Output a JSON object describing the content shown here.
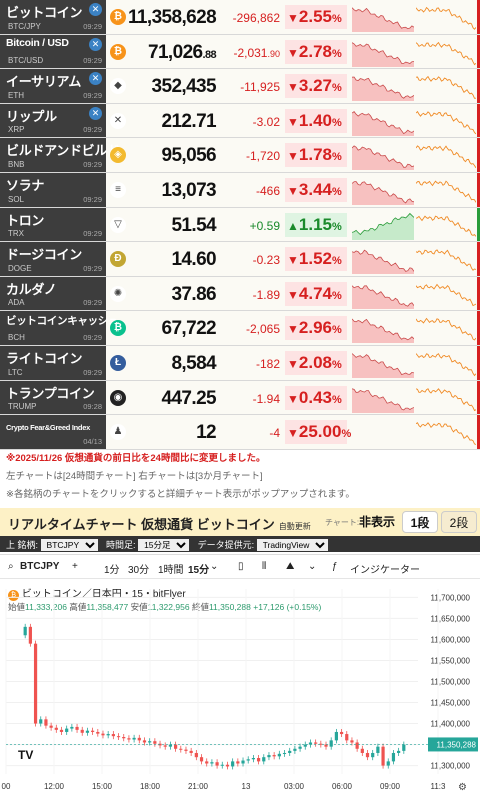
{
  "rows": [
    {
      "name": "ビットコイン",
      "sym": "BTC/JPY",
      "time": "09:29",
      "price": "11,358,628",
      "price_small": "",
      "change": "-296,862",
      "pct": "2.55",
      "dir": "down",
      "x": true,
      "icon": "bitcoin-icon",
      "icon_color": "#f7931a",
      "icon_glyph": "₿"
    },
    {
      "name": "Bitcoin / USD",
      "sym": "BTC/USD",
      "time": "09:29",
      "price": "71,026",
      "price_small": ".88",
      "change": "-2,031",
      "change_small": ".90",
      "pct": "2.78",
      "dir": "down",
      "x": true,
      "icon": "bitcoin-icon",
      "icon_color": "#f7931a",
      "icon_glyph": "₿"
    },
    {
      "name": "イーサリアム",
      "sym": "ETH",
      "time": "09:29",
      "price": "352,435",
      "price_small": "",
      "change": "-11,925",
      "pct": "3.27",
      "dir": "down",
      "x": true,
      "icon": "ethereum-icon",
      "icon_color": "#ffffff",
      "icon_glyph": "◆"
    },
    {
      "name": "リップル",
      "sym": "XRP",
      "time": "09:29",
      "price": "212.71",
      "price_small": "",
      "change": "-3.02",
      "pct": "1.40",
      "dir": "down",
      "x": true,
      "icon": "xrp-icon",
      "icon_color": "#ffffff",
      "icon_glyph": "✕"
    },
    {
      "name": "ビルドアンドビルド",
      "sym": "BNB",
      "time": "09:29",
      "price": "95,056",
      "price_small": "",
      "change": "-1,720",
      "pct": "1.78",
      "dir": "down",
      "x": false,
      "icon": "bnb-icon",
      "icon_color": "#f3ba2f",
      "icon_glyph": "◈"
    },
    {
      "name": "ソラナ",
      "sym": "SOL",
      "time": "09:29",
      "price": "13,073",
      "price_small": "",
      "change": "-466",
      "pct": "3.44",
      "dir": "down",
      "x": false,
      "icon": "solana-icon",
      "icon_color": "#ffffff",
      "icon_glyph": "≡"
    },
    {
      "name": "トロン",
      "sym": "TRX",
      "time": "09:29",
      "price": "51.54",
      "price_small": "",
      "change": "+0.59",
      "pct": "1.15",
      "dir": "up",
      "x": false,
      "icon": "tron-icon",
      "icon_color": "#ffffff",
      "icon_glyph": "▽"
    },
    {
      "name": "ドージコイン",
      "sym": "DOGE",
      "time": "09:29",
      "price": "14.60",
      "price_small": "",
      "change": "-0.23",
      "pct": "1.52",
      "dir": "down",
      "x": false,
      "icon": "dogecoin-icon",
      "icon_color": "#c2a633",
      "icon_glyph": "Ð"
    },
    {
      "name": "カルダノ",
      "sym": "ADA",
      "time": "09:29",
      "price": "37.86",
      "price_small": "",
      "change": "-1.89",
      "pct": "4.74",
      "dir": "down",
      "x": false,
      "icon": "cardano-icon",
      "icon_color": "#ffffff",
      "icon_glyph": "✺"
    },
    {
      "name": "ビットコインキャッシュ",
      "sym": "BCH",
      "time": "09:29",
      "price": "67,722",
      "price_small": "",
      "change": "-2,065",
      "pct": "2.96",
      "dir": "down",
      "x": false,
      "icon": "bitcoin-cash-icon",
      "icon_color": "#0ac18e",
      "icon_glyph": "₿"
    },
    {
      "name": "ライトコイン",
      "sym": "LTC",
      "time": "09:29",
      "price": "8,584",
      "price_small": "",
      "change": "-182",
      "pct": "2.08",
      "dir": "down",
      "x": false,
      "icon": "litecoin-icon",
      "icon_color": "#345d9d",
      "icon_glyph": "Ł"
    },
    {
      "name": "トランプコイン",
      "sym": "TRUMP",
      "time": "09:28",
      "price": "447.25",
      "price_small": "",
      "change": "-1.94",
      "pct": "0.43",
      "dir": "down",
      "x": false,
      "icon": "trump-coin-icon",
      "icon_color": "#222222",
      "icon_glyph": "◉"
    },
    {
      "name": "Crypto Fear&Greed Index",
      "sym": "",
      "time": "04/13",
      "price": "12",
      "price_small": "",
      "change": "-4",
      "pct": "25.00",
      "dir": "down",
      "x": false,
      "icon": "fear-greed-icon",
      "icon_color": "#ffffff",
      "icon_glyph": "♟"
    }
  ],
  "notes": {
    "n1": "※2025/11/26 仮想通貨の前日比を24時間比に変更しました。",
    "n2": "左チャートは[24時間チャート] 右チャートは[3か月チャート]",
    "n3": "※各銘柄のチャートをクリックすると詳細チャート表示がポップアップされます。"
  },
  "realtime": {
    "title": "リアルタイムチャート 仮想通貨 ビットコイン",
    "auto": "自動更新",
    "chart_label": "チャート:",
    "btn_hide": "非表示",
    "btn_1": "1段",
    "btn_2": "2段"
  },
  "controls": {
    "symbol_label": "上 銘柄:",
    "symbol_value": "BTCJPY",
    "interval_label": "時間足:",
    "interval_value": "15分足",
    "provider_label": "データ提供元:",
    "provider_value": "TradingView"
  },
  "tv": {
    "symbol": "BTCJPY",
    "tf1": "1分",
    "tf2": "30分",
    "tf3": "1時間",
    "tf4": "15分",
    "indicator": "インジケーター",
    "legend": "ビットコイン／日本円・15・bitFlyer",
    "ohlc_o_label": "始値",
    "ohlc_o": "11,333,206",
    "ohlc_h_label": "高値",
    "ohlc_h": "11,358,477",
    "ohlc_l_label": "安値",
    "ohlc_l": "11,322,956",
    "ohlc_c_label": "終値",
    "ohlc_c": "11,350,288",
    "ohlc_chg": "+17,126 (+0.15%)",
    "last_price": "11,350,288",
    "logo": "TV"
  },
  "chart_data": {
    "type": "line",
    "title": "",
    "y_ticks": [
      "11,700,000",
      "11,650,000",
      "11,600,000",
      "11,550,000",
      "11,500,000",
      "11,450,000",
      "11,400,000",
      "11,350,000",
      "11,300,000"
    ],
    "x_ticks": [
      "00",
      "12:00",
      "15:00",
      "18:00",
      "21:00",
      "13",
      "03:00",
      "06:00",
      "09:00",
      "11:3"
    ],
    "ylim": [
      11280000,
      11720000
    ],
    "series": [
      {
        "values": [
          11610000,
          11630000,
          11590000,
          11400000,
          11410000,
          11395000,
          11390000,
          11385000,
          11380000,
          11388000,
          11392000,
          11385000,
          11378000,
          11383000,
          11380000,
          11376000,
          11372000,
          11375000,
          11370000,
          11368000,
          11365000,
          11362000,
          11366000,
          11360000,
          11355000,
          11358000,
          11352000,
          11348000,
          11345000,
          11350000,
          11340000,
          11338000,
          11335000,
          11330000,
          11320000,
          11310000,
          11305000,
          11308000,
          11300000,
          11302000,
          11298000,
          11310000,
          11305000,
          11312000,
          11315000,
          11318000,
          11310000,
          11320000,
          11325000,
          11322000,
          11328000,
          11330000,
          11335000,
          11340000,
          11345000,
          11350000,
          11355000,
          11352000,
          11350000,
          11345000,
          11360000,
          11380000,
          11375000,
          11360000,
          11355000,
          11340000,
          11330000,
          11320000,
          11330000,
          11345000,
          11300000,
          11310000,
          11330000,
          11335000,
          11350000
        ]
      }
    ]
  }
}
